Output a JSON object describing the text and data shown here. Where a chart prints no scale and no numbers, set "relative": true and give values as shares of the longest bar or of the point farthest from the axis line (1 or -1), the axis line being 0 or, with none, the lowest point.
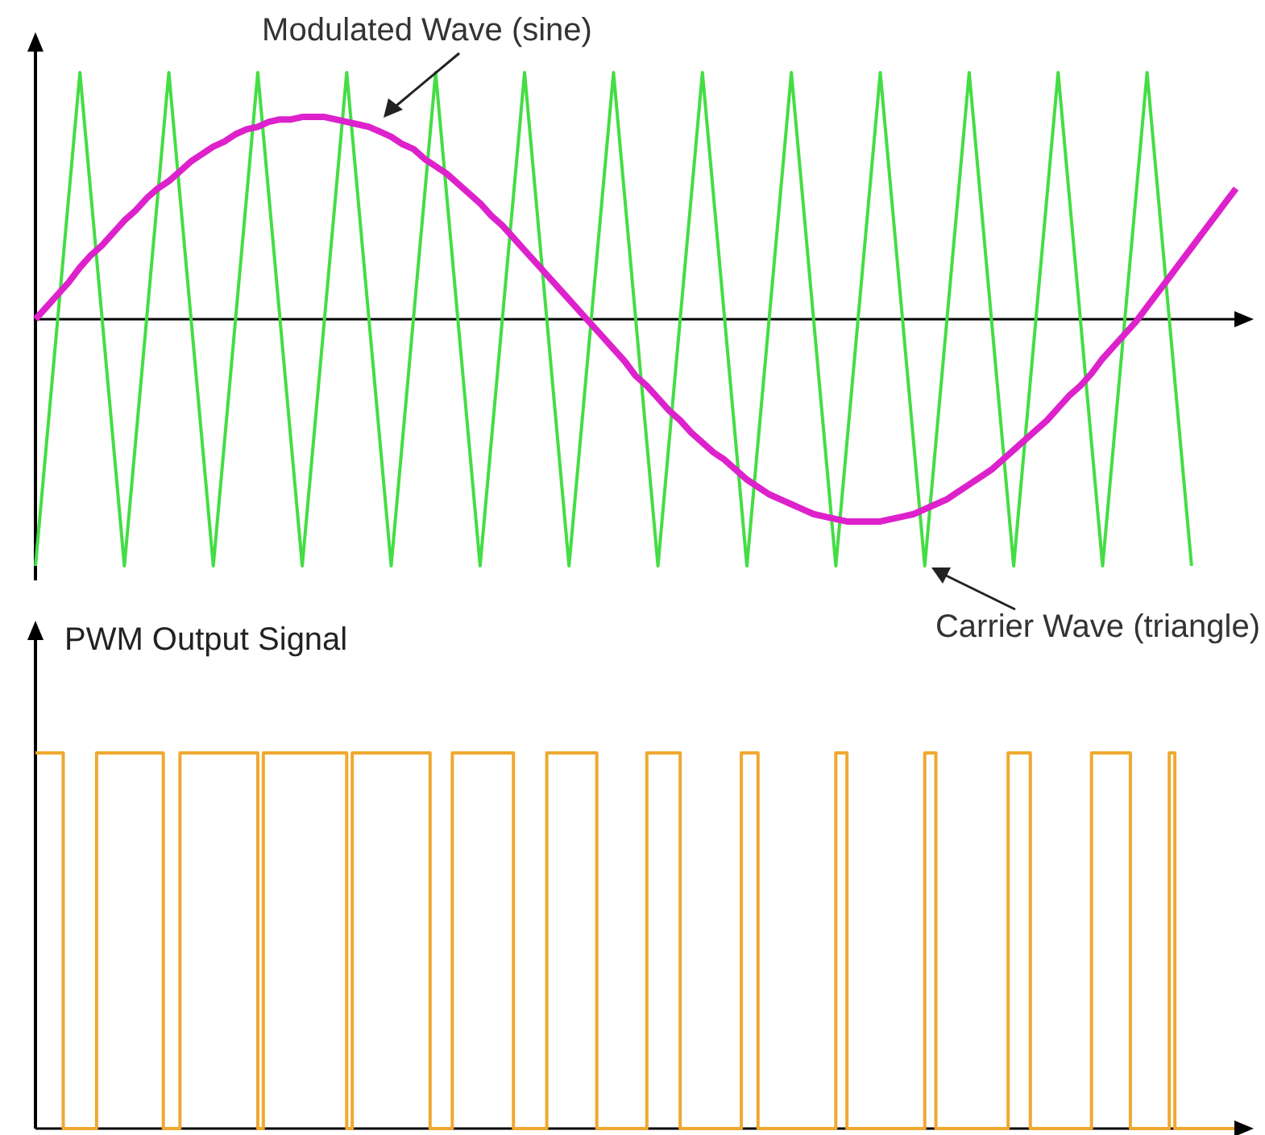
{
  "chart_data": [
    {
      "type": "line",
      "relative": true,
      "marker": "none",
      "line_style": "solid",
      "categories": [
        null,
        null,
        null,
        null,
        null,
        null,
        null,
        null,
        null,
        null,
        null,
        null,
        null,
        null,
        null,
        null,
        null,
        null,
        null,
        null,
        null,
        null,
        null,
        null,
        null,
        null,
        null,
        null,
        null,
        null,
        null,
        null,
        null,
        null,
        null,
        null,
        null,
        null,
        null,
        null,
        null,
        null,
        null,
        null,
        null,
        null,
        null,
        null,
        null,
        null,
        null,
        null,
        null,
        null,
        null,
        null,
        null,
        null,
        null,
        null,
        null,
        null,
        null,
        null,
        null,
        null,
        null,
        null,
        null,
        null,
        null,
        null,
        null,
        null,
        null,
        null,
        null,
        null,
        null,
        null,
        null,
        null,
        null,
        null,
        null,
        null,
        null,
        null,
        null,
        null,
        null,
        null,
        null,
        null,
        null,
        null,
        null,
        null,
        null,
        null,
        null,
        null,
        null,
        null,
        null,
        null,
        null,
        null,
        null
      ],
      "series": [
        {
          "color": "#44dd44",
          "values": [
            -1,
            -0.5,
            0,
            0.5,
            1,
            0.5,
            0,
            -0.5,
            -1,
            -0.5,
            0,
            0.5,
            1,
            0.5,
            0,
            -0.5,
            -1,
            -0.5,
            0,
            0.5,
            1,
            0.5,
            0,
            -0.5,
            -1,
            -0.5,
            0,
            0.5,
            1,
            0.5,
            0,
            -0.5,
            -1,
            -0.5,
            0,
            0.5,
            1,
            0.5,
            0,
            -0.5,
            -1,
            -0.5,
            0,
            0.5,
            1,
            0.5,
            0,
            -0.5,
            -1,
            -0.5,
            0,
            0.5,
            1,
            0.5,
            0,
            -0.5,
            -1,
            -0.5,
            0,
            0.5,
            1,
            0.5,
            0,
            -0.5,
            -1,
            -0.5,
            0,
            0.5,
            1,
            0.5,
            0,
            -0.5,
            -1,
            -0.5,
            0,
            0.5,
            1,
            0.5,
            0,
            -0.5,
            -1,
            -0.5,
            0,
            0.5,
            1,
            0.5,
            0,
            -0.5,
            -1,
            -0.5,
            0,
            0.5,
            1,
            0.5,
            0,
            -0.5,
            -1,
            -0.5,
            0,
            0.5,
            1,
            0.5,
            0,
            -0.5,
            -1,
            null,
            null,
            null,
            null
          ]
        },
        {
          "color": "#dd22cc",
          "values": [
            0,
            0.05,
            0.1,
            0.15,
            0.21,
            0.26,
            0.3,
            0.35,
            0.4,
            0.44,
            0.49,
            0.53,
            0.56,
            0.6,
            0.64,
            0.67,
            0.7,
            0.72,
            0.75,
            0.77,
            0.78,
            0.8,
            0.81,
            0.81,
            0.82,
            0.82,
            0.82,
            0.81,
            0.8,
            0.79,
            0.78,
            0.76,
            0.74,
            0.71,
            0.69,
            0.65,
            0.62,
            0.59,
            0.55,
            0.51,
            0.47,
            0.42,
            0.38,
            0.33,
            0.28,
            0.23,
            0.18,
            0.13,
            0.08,
            0.03,
            -0.02,
            -0.07,
            -0.12,
            -0.17,
            -0.23,
            -0.27,
            -0.32,
            -0.37,
            -0.41,
            -0.46,
            -0.5,
            -0.54,
            -0.57,
            -0.61,
            -0.65,
            -0.68,
            -0.71,
            -0.73,
            -0.75,
            -0.77,
            -0.79,
            -0.8,
            -0.81,
            -0.82,
            -0.82,
            -0.82,
            -0.82,
            -0.81,
            -0.8,
            -0.79,
            -0.77,
            -0.75,
            -0.73,
            -0.7,
            -0.67,
            -0.64,
            -0.61,
            -0.57,
            -0.53,
            -0.49,
            -0.45,
            -0.41,
            -0.36,
            -0.31,
            -0.27,
            -0.22,
            -0.16,
            -0.11,
            -0.06,
            -0.01,
            0.05,
            0.11,
            0.17,
            0.23,
            0.29,
            0.35,
            0.41,
            0.47,
            0.53
          ]
        }
      ],
      "annotations": [
        "Modulated Wave (sine)",
        "Carrier Wave (triangle)"
      ]
    },
    {
      "type": "step",
      "relative": true,
      "title": "PWM Output Signal",
      "categories": [
        null,
        null,
        null,
        null,
        null,
        null,
        null,
        null,
        null,
        null,
        null,
        null,
        null,
        null,
        null,
        null,
        null,
        null,
        null,
        null,
        null,
        null,
        null,
        null,
        null,
        null,
        null,
        null,
        null,
        null,
        null,
        null,
        null,
        null,
        null,
        null,
        null,
        null,
        null,
        null,
        null,
        null,
        null,
        null,
        null,
        null,
        null,
        null,
        null,
        null,
        null,
        null,
        null,
        null,
        null,
        null,
        null,
        null,
        null,
        null,
        null,
        null,
        null,
        null,
        null,
        null,
        null,
        null,
        null,
        null,
        null,
        null,
        null,
        null,
        null,
        null,
        null,
        null,
        null,
        null,
        null,
        null,
        null,
        null,
        null,
        null,
        null,
        null,
        null,
        null,
        null,
        null,
        null,
        null,
        null,
        null,
        null,
        null,
        null,
        null,
        null,
        null,
        null,
        null,
        null,
        null,
        null,
        null,
        null,
        null,
        null,
        null,
        null,
        null,
        null,
        null,
        null,
        null,
        null,
        null,
        null,
        null,
        null,
        null,
        null,
        null,
        null,
        null,
        null,
        null,
        null,
        null,
        null,
        null,
        null,
        null,
        null,
        null,
        null,
        null,
        null,
        null,
        null,
        null,
        null,
        null,
        null,
        null,
        null,
        null,
        null,
        null,
        null,
        null,
        null,
        null,
        null,
        null,
        null,
        null,
        null,
        null,
        null,
        null,
        null,
        null,
        null,
        null,
        null,
        null,
        null,
        null,
        null,
        null,
        null,
        null,
        null,
        null,
        null,
        null,
        null,
        null,
        null,
        null,
        null,
        null,
        null,
        null,
        null,
        null,
        null,
        null,
        null,
        null,
        null,
        null,
        null,
        null,
        null,
        null,
        null,
        null,
        null,
        null,
        null,
        null,
        null,
        null,
        null,
        null,
        null,
        null,
        null,
        null,
        null,
        null,
        null
      ],
      "series": [
        {
          "color": "#f0a830",
          "values": [
            1,
            1,
            1,
            1,
            1,
            0,
            0,
            0,
            0,
            0,
            0,
            1,
            1,
            1,
            1,
            1,
            1,
            1,
            1,
            1,
            1,
            1,
            1,
            0,
            0,
            0,
            1,
            1,
            1,
            1,
            1,
            1,
            1,
            1,
            1,
            1,
            1,
            1,
            1,
            1,
            0,
            1,
            1,
            1,
            1,
            1,
            1,
            1,
            1,
            1,
            1,
            1,
            1,
            1,
            1,
            1,
            0,
            1,
            1,
            1,
            1,
            1,
            1,
            1,
            1,
            1,
            1,
            1,
            1,
            1,
            1,
            0,
            0,
            0,
            0,
            1,
            1,
            1,
            1,
            1,
            1,
            1,
            1,
            1,
            1,
            1,
            0,
            0,
            0,
            0,
            0,
            0,
            1,
            1,
            1,
            1,
            1,
            1,
            1,
            1,
            1,
            0,
            0,
            0,
            0,
            0,
            0,
            0,
            0,
            0,
            1,
            1,
            1,
            1,
            1,
            1,
            0,
            0,
            0,
            0,
            0,
            0,
            0,
            0,
            0,
            0,
            0,
            1,
            1,
            1,
            0,
            0,
            0,
            0,
            0,
            0,
            0,
            0,
            0,
            0,
            0,
            0,
            0,
            0,
            1,
            1,
            0,
            0,
            0,
            0,
            0,
            0,
            0,
            0,
            0,
            0,
            0,
            0,
            0,
            0,
            1,
            1,
            0,
            0,
            0,
            0,
            0,
            0,
            0,
            0,
            0,
            0,
            0,
            0,
            0,
            1,
            1,
            1,
            1,
            0,
            0,
            0,
            0,
            0,
            0,
            0,
            0,
            0,
            0,
            0,
            1,
            1,
            1,
            1,
            1,
            1,
            1,
            0,
            0,
            0,
            0,
            0,
            0,
            0,
            1,
            0,
            0,
            0,
            0,
            0,
            0,
            0,
            0,
            0,
            0,
            0,
            0
          ]
        }
      ]
    }
  ]
}
